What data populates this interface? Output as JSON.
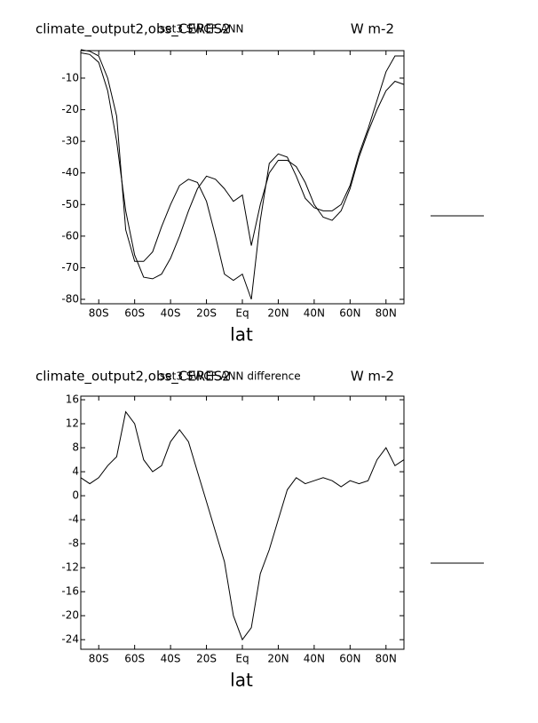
{
  "chart_data": [
    {
      "type": "line",
      "title": "climate_output2,obs_CERES2",
      "subtitle": "set3 SWCF ANN",
      "units": "W m-2",
      "xlabel": "lat",
      "x": [
        -90,
        -85,
        -80,
        -75,
        -70,
        -65,
        -60,
        -55,
        -50,
        -45,
        -40,
        -35,
        -30,
        -25,
        -20,
        -15,
        -10,
        -5,
        0,
        5,
        10,
        15,
        20,
        25,
        30,
        35,
        40,
        45,
        50,
        55,
        60,
        65,
        70,
        75,
        80,
        85,
        90
      ],
      "xlim": [
        -90,
        90
      ],
      "xticks": [
        {
          "value": -80,
          "label": "80S"
        },
        {
          "value": -60,
          "label": "60S"
        },
        {
          "value": -40,
          "label": "40S"
        },
        {
          "value": -20,
          "label": "20S"
        },
        {
          "value": 0,
          "label": "Eq"
        },
        {
          "value": 20,
          "label": "20N"
        },
        {
          "value": 40,
          "label": "40N"
        },
        {
          "value": 60,
          "label": "60N"
        },
        {
          "value": 80,
          "label": "80N"
        }
      ],
      "ylim": [
        -81.4,
        -1.3
      ],
      "yticks": [
        -80,
        -70,
        -60,
        -50,
        -40,
        -30,
        -20,
        -10
      ],
      "series": [
        {
          "color": "#000000",
          "values": [
            -2,
            -2.5,
            -5,
            -14,
            -30,
            -52,
            -66,
            -73,
            -73.5,
            -72,
            -67,
            -60,
            -52,
            -45,
            -41,
            -42,
            -45,
            -49,
            -47,
            -63,
            -50,
            -40,
            -36,
            -36,
            -38,
            -43,
            -50,
            -54,
            -55,
            -52,
            -45,
            -35,
            -27,
            -20,
            -14,
            -11,
            -12
          ]
        },
        {
          "color": "#000000",
          "values": [
            -1,
            -1.5,
            -3,
            -10,
            -22,
            -58,
            -68,
            -68,
            -65,
            -57,
            -50,
            -44,
            -42,
            -43,
            -49,
            -60,
            -72,
            -74,
            -72,
            -80,
            -55,
            -37,
            -34,
            -35,
            -41,
            -48,
            -51,
            -52,
            -52,
            -50,
            -44,
            -34,
            -26,
            -17,
            -8,
            -3,
            -3
          ]
        }
      ]
    },
    {
      "type": "line",
      "title": "climate_output2,obs_CERES2",
      "subtitle": "set3 SWCF ANN difference",
      "units": "W m-2",
      "xlabel": "lat",
      "x": [
        -90,
        -85,
        -80,
        -75,
        -70,
        -65,
        -60,
        -55,
        -50,
        -45,
        -40,
        -35,
        -30,
        -25,
        -20,
        -15,
        -10,
        -5,
        0,
        5,
        10,
        15,
        20,
        25,
        30,
        35,
        40,
        45,
        50,
        55,
        60,
        65,
        70,
        75,
        80,
        85,
        90
      ],
      "xlim": [
        -90,
        90
      ],
      "xticks": [
        {
          "value": -80,
          "label": "80S"
        },
        {
          "value": -60,
          "label": "60S"
        },
        {
          "value": -40,
          "label": "40S"
        },
        {
          "value": -20,
          "label": "20S"
        },
        {
          "value": 0,
          "label": "Eq"
        },
        {
          "value": 20,
          "label": "20N"
        },
        {
          "value": 40,
          "label": "40N"
        },
        {
          "value": 60,
          "label": "60N"
        },
        {
          "value": 80,
          "label": "80N"
        }
      ],
      "ylim": [
        -25.6,
        16.6
      ],
      "yticks": [
        -24,
        -20,
        -16,
        -12,
        -8,
        -4,
        0,
        4,
        8,
        12,
        16
      ],
      "series": [
        {
          "color": "#000000",
          "values": [
            3,
            2,
            3,
            5,
            6.5,
            14,
            12,
            6,
            4,
            5,
            9,
            11,
            9,
            4,
            -1,
            -6,
            -11,
            -20,
            -24,
            -22,
            -13,
            -9,
            -4,
            1,
            3,
            2,
            2.5,
            3,
            2.5,
            1.5,
            2.5,
            2,
            2.5,
            6,
            8,
            5,
            6
          ]
        }
      ]
    }
  ]
}
